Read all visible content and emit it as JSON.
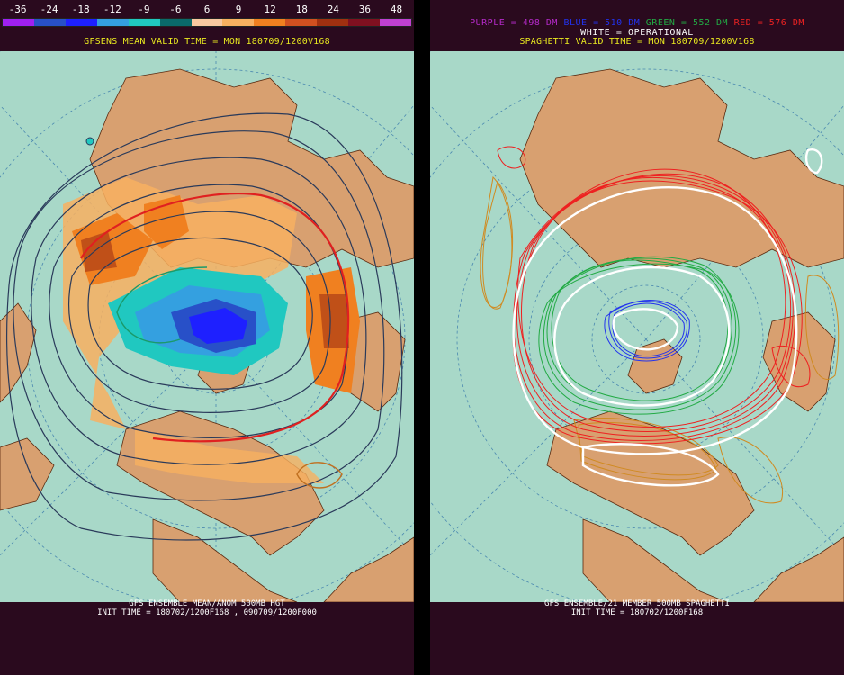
{
  "left_panel": {
    "colorbar": {
      "labels": [
        "-36",
        "-24",
        "-18",
        "-12",
        "-9",
        "-6",
        "6",
        "9",
        "12",
        "18",
        "24",
        "36",
        "48"
      ],
      "colors": [
        "#a020f0",
        "#2850c8",
        "#1e20ff",
        "#34a0e0",
        "#20c8c0",
        "#0a6a6a",
        "#f8c8a0",
        "#f8b060",
        "#f08020",
        "#d05020",
        "#a03010",
        "#801020",
        "#c040d0"
      ]
    },
    "valid_time": "GFSENS MEAN VALID TIME = MON 180709/1200V168",
    "footer_line1": "GFS ENSEMBLE MEAN/ANOM 500MB HGT",
    "footer_line2": "INIT TIME = 180702/1200F168 , 090709/1200F000"
  },
  "right_panel": {
    "legend": {
      "purple": "PURPLE = 498 DM",
      "blue": "BLUE = 510 DM",
      "green": "GREEN = 552 DM",
      "red": "RED = 576 DM"
    },
    "operational": "WHITE = OPERATIONAL",
    "valid_time": "SPAGHETTI VALID TIME = MON 180709/1200V168",
    "footer_line1": "GFS ENSEMBLE/21 MEMBER 500MB SPAGHETTI",
    "footer_line2": "INIT TIME = 180702/1200F168"
  },
  "colors": {
    "ocean": "#a8d8c8",
    "land": "#d8a070",
    "border": "#5a2a10",
    "background": "#2a0a1e"
  }
}
